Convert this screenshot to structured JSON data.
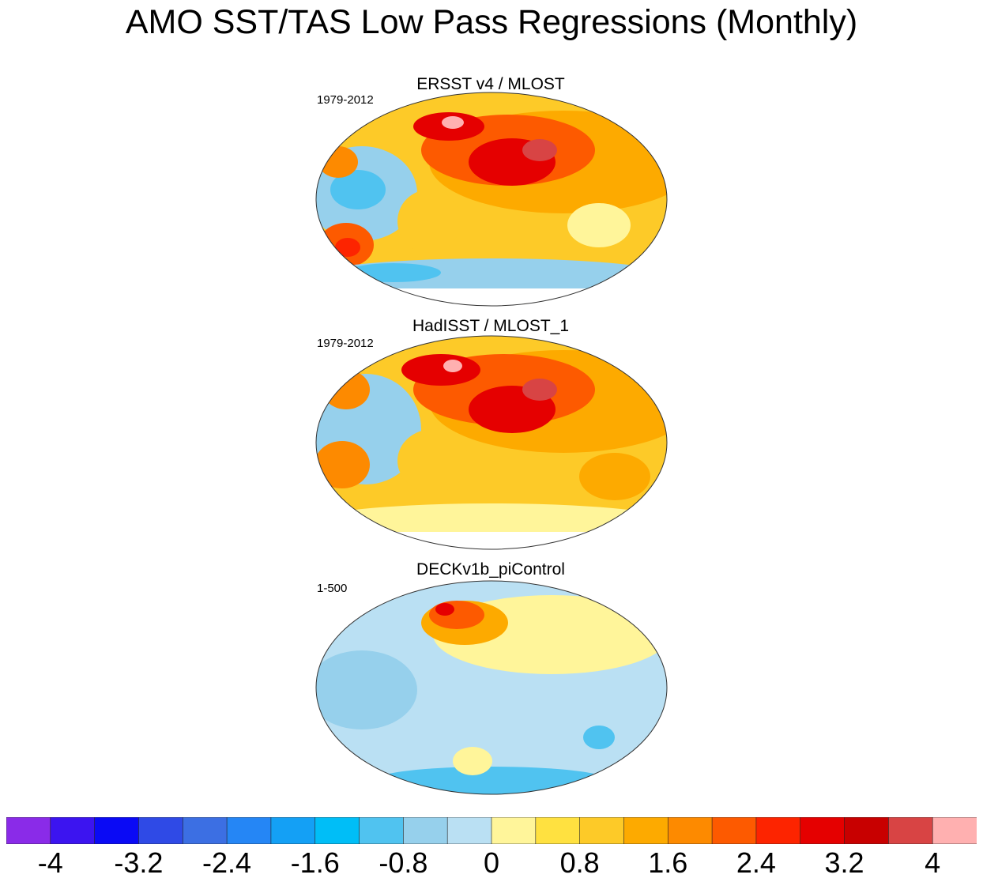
{
  "title": "AMO SST/TAS Low Pass Regressions (Monthly)",
  "panels": [
    {
      "title": "ERSST v4 / MLOST",
      "period": "1979-2012"
    },
    {
      "title": "HadISST / MLOST_1",
      "period": "1979-2012"
    },
    {
      "title": "DECKv1b_piControl",
      "period": "1-500"
    }
  ],
  "colorbar": {
    "colors": [
      "#8a2be8",
      "#3c14f0",
      "#0a0af5",
      "#2f4ae6",
      "#3c6fe3",
      "#2586f5",
      "#14a0f5",
      "#00bef7",
      "#50c3f0",
      "#96d0ec",
      "#bae0f3",
      "#fff59a",
      "#ffe140",
      "#fdca28",
      "#fdaa00",
      "#fd8a00",
      "#fd5a00",
      "#fd2400",
      "#e50000",
      "#c80000",
      "#d84444",
      "#ffb0b0"
    ],
    "labels": [
      "-4",
      "-3.2",
      "-2.4",
      "-1.6",
      "-0.8",
      "0",
      "0.8",
      "1.6",
      "2.4",
      "3.2",
      "4"
    ]
  },
  "chart_data": [
    {
      "type": "heatmap",
      "title": "ERSST v4 / MLOST",
      "period": "1979-2012",
      "variable": "AMO SST/TAS low pass regression",
      "range": [
        -4,
        4
      ],
      "interval": 0.4,
      "pattern": "strong warming over North Atlantic, Europe, Siberia and North Africa (2.4-3.6); weak negatives in tropical/subtropical Pacific and Southern Ocean"
    },
    {
      "type": "heatmap",
      "title": "HadISST / MLOST_1",
      "period": "1979-2012",
      "variable": "AMO SST/TAS low pass regression",
      "range": [
        -4,
        4
      ],
      "interval": 0.4,
      "pattern": "strong warming over North Atlantic, Europe, Siberia and North Africa (2.4-3.6); weak negatives in Pacific"
    },
    {
      "type": "heatmap",
      "title": "DECKv1b_piControl",
      "period": "1-500",
      "variable": "AMO SST/TAS low pass regression",
      "range": [
        -4,
        4
      ],
      "interval": 0.4,
      "pattern": "warming concentrated in North Atlantic (up to 3.6); mostly weak negatives elsewhere"
    }
  ]
}
